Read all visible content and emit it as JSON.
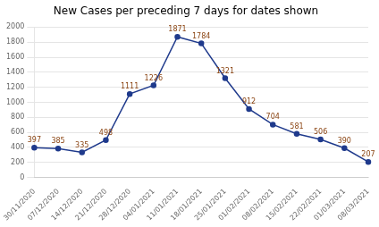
{
  "chart_data": {
    "type": "line",
    "title": "New Cases per preceding 7 days for dates shown",
    "categories": [
      "30/11/2020",
      "07/12/2020",
      "14/12/2020",
      "21/12/2020",
      "28/12/2020",
      "04/01/2021",
      "11/01/2021",
      "18/01/2021",
      "25/01/2021",
      "01/02/2021",
      "08/02/2021",
      "15/02/2021",
      "22/02/2021",
      "01/03/2021",
      "08/03/2021"
    ],
    "values": [
      397,
      385,
      335,
      498,
      1111,
      1226,
      1871,
      1784,
      1321,
      912,
      704,
      581,
      506,
      390,
      207
    ],
    "color": "#1F3A8C",
    "ylim": [
      0,
      2000
    ],
    "yticks": [
      0,
      200,
      400,
      600,
      800,
      1000,
      1200,
      1400,
      1600,
      1800,
      2000
    ],
    "grid": true,
    "data_labels": true,
    "marker": "circle"
  }
}
